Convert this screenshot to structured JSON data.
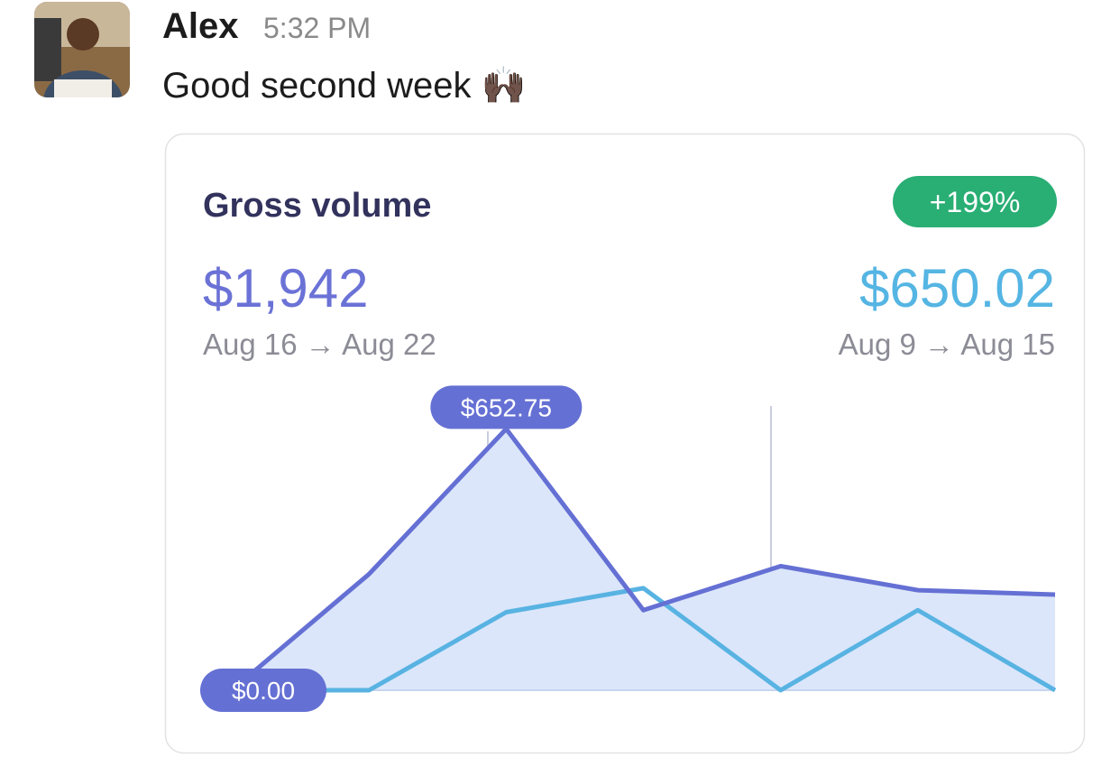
{
  "message": {
    "author": "Alex",
    "time": "5:32 PM",
    "text": "Good second week 🙌🏿"
  },
  "card": {
    "title": "Gross volume",
    "badge": "+199%",
    "current_total": "$1,942",
    "current_range": "Aug 16 → Aug 22",
    "previous_total": "$650.02",
    "previous_range": "Aug 9 → Aug 15"
  },
  "chart_data": {
    "type": "line",
    "categories": [
      null,
      null,
      null,
      null,
      null,
      null,
      null
    ],
    "ylim": [
      0,
      710
    ],
    "series": [
      {
        "color": "#6570d4",
        "fill": "#dbe6fa",
        "values": [
          0,
          290,
          652.75,
          200,
          310,
          250,
          239
        ],
        "value_labels": [
          "$0.00",
          null,
          "$652.75",
          null,
          null,
          null,
          null
        ]
      },
      {
        "color": "#58b3e2",
        "values": [
          0,
          0,
          195,
          255,
          0,
          200,
          0
        ]
      }
    ]
  }
}
